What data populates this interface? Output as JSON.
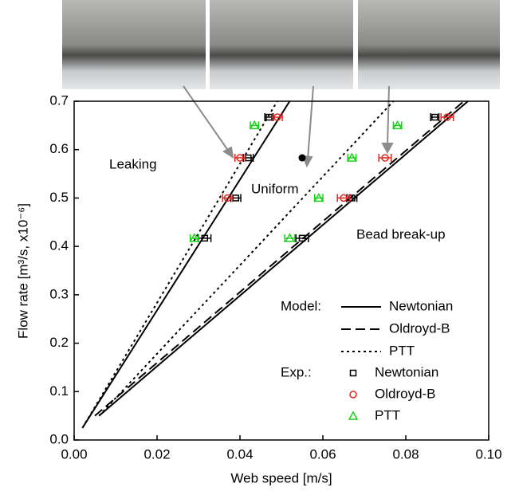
{
  "chart_data": {
    "type": "scatter",
    "xlabel": "Web speed [m/s]",
    "ylabel": "Flow rate [m³/s, x10⁻⁶]",
    "xlim": [
      0,
      0.1
    ],
    "ylim": [
      0,
      0.7
    ],
    "xticks": [
      {
        "value": 0,
        "label": "0.00"
      },
      {
        "value": 0.02,
        "label": "0.02"
      },
      {
        "value": 0.04,
        "label": "0.04"
      },
      {
        "value": 0.06,
        "label": "0.06"
      },
      {
        "value": 0.08,
        "label": "0.08"
      },
      {
        "value": 0.1,
        "label": "0.10"
      }
    ],
    "yticks": [
      {
        "value": 0,
        "label": "0.0"
      },
      {
        "value": 0.1,
        "label": "0.1"
      },
      {
        "value": 0.2,
        "label": "0.2"
      },
      {
        "value": 0.3,
        "label": "0.3"
      },
      {
        "value": 0.4,
        "label": "0.4"
      },
      {
        "value": 0.5,
        "label": "0.5"
      },
      {
        "value": 0.6,
        "label": "0.6"
      },
      {
        "value": 0.7,
        "label": "0.7"
      }
    ],
    "annotations": [
      "Leaking",
      "Uniform",
      "Bead break-up"
    ],
    "legend_model_label": "Model:",
    "legend_exp_label": "Exp.:",
    "model_lines": [
      {
        "name": "Newtonian",
        "color": "#000000",
        "dash": "solid",
        "x": [
          0.002,
          0.052,
          null,
          0.006,
          0.095
        ],
        "y": [
          0.025,
          0.7,
          null,
          0.05,
          0.7
        ]
      },
      {
        "name": "Oldroyd-B",
        "color": "#000000",
        "dash": "dashed",
        "x": [
          0.005,
          0.094
        ],
        "y": [
          0.05,
          0.7
        ]
      },
      {
        "name": "PTT",
        "color": "#000000",
        "dash": "dotted",
        "x": [
          0.002,
          0.049,
          null,
          0.006,
          0.077
        ],
        "y": [
          0.025,
          0.7,
          null,
          0.05,
          0.7
        ]
      }
    ],
    "series": [
      {
        "name": "Newtonian",
        "color": "#000000",
        "marker": "square",
        "x": [
          0.0315,
          0.039,
          0.042,
          0.047,
          0.055,
          0.067,
          0.087
        ],
        "y": [
          0.417,
          0.5,
          0.583,
          0.667,
          0.417,
          0.5,
          0.667
        ],
        "xerr": [
          0.0015,
          0.0012,
          0.0012,
          0.001,
          0.0015,
          0.0012,
          0.001
        ]
      },
      {
        "name": "Oldroyd-B",
        "color": "#e8231c",
        "marker": "circle",
        "x": [
          0.037,
          0.04,
          0.049,
          0.065,
          0.075,
          0.09
        ],
        "y": [
          0.5,
          0.583,
          0.667,
          0.5,
          0.583,
          0.667
        ],
        "xerr": [
          0.0012,
          0.0012,
          0.0012,
          0.0015,
          0.0015,
          0.0015
        ]
      },
      {
        "name": "PTT",
        "color": "#19d219",
        "marker": "triangle",
        "x": [
          0.029,
          0.0435,
          0.052,
          0.059,
          0.067,
          0.078
        ],
        "y": [
          0.417,
          0.65,
          0.417,
          0.5,
          0.583,
          0.65
        ],
        "xerr": [
          0.001,
          0.001,
          0.0012,
          0.001,
          0.001,
          0.001
        ]
      }
    ],
    "highlight_point": {
      "x": 0.055,
      "y": 0.583
    }
  }
}
